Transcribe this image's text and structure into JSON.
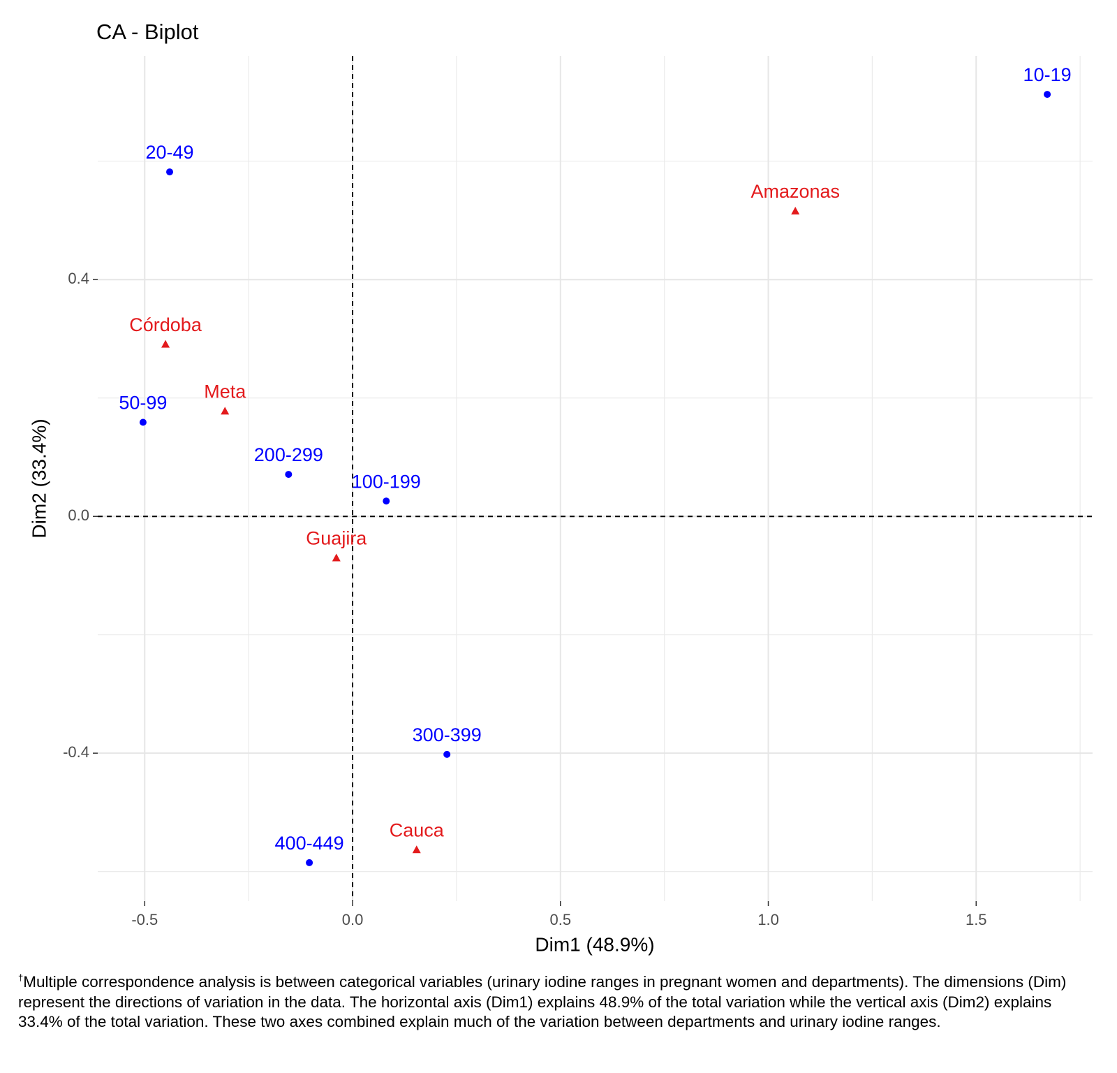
{
  "chart_data": {
    "type": "scatter",
    "title": "CA - Biplot",
    "xlabel": "Dim1 (48.9%)",
    "ylabel": "Dim2 (33.4%)",
    "xlim": [
      -0.613,
      1.78
    ],
    "ylim": [
      -0.65,
      0.778
    ],
    "xticks": [
      -0.5,
      {
        "value": 0,
        "label": "0.0"
      },
      0.5,
      {
        "value": 1,
        "label": "1.0"
      },
      1.5
    ],
    "yticks": [
      -0.4,
      {
        "value": 0,
        "label": "0.0"
      },
      0.4
    ],
    "grid": true,
    "minor_grid": true,
    "vline": 0,
    "hline": 0,
    "series": [
      {
        "color": "#0000ff",
        "marker": "circle",
        "labels": [
          "10-19",
          "20-49",
          "50-99",
          "200-299",
          "100-199",
          "300-399",
          "400-449"
        ],
        "x": [
          1.671,
          -0.44,
          -0.504,
          -0.154,
          0.081,
          0.227,
          -0.104
        ],
        "y": [
          0.713,
          0.582,
          0.159,
          0.071,
          0.026,
          -0.402,
          -0.585
        ]
      },
      {
        "color": "#e31a1c",
        "marker": "triangle",
        "labels": [
          "Amazonas",
          "Córdoba",
          "Meta",
          "Guajira",
          "Cauca"
        ],
        "x": [
          1.065,
          -0.45,
          -0.307,
          -0.039,
          0.154
        ],
        "y": [
          0.516,
          0.291,
          0.178,
          -0.07,
          -0.563
        ]
      }
    ]
  },
  "footnote_mark": "†",
  "footnote": "Multiple correspondence analysis is between categorical variables (urinary iodine ranges in pregnant women and departments). The dimensions (Dim) represent the directions of variation in the data. The horizontal axis (Dim1) explains 48.9% of the total variation while the vertical axis (Dim2) explains 33.4% of the total variation. These two axes combined explain much of the variation between departments and urinary iodine ranges."
}
